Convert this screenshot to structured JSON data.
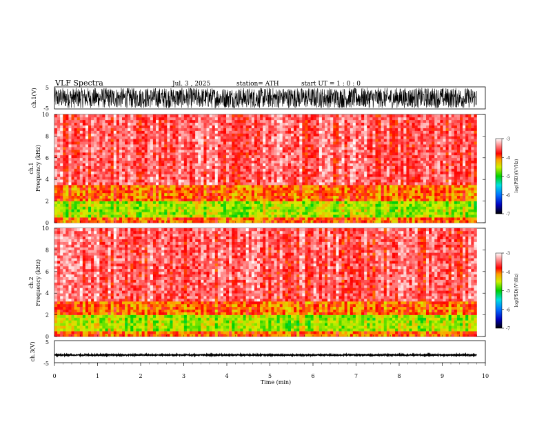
{
  "header": {
    "title": "VLF  Spectra",
    "date": "Jul.  3  , 2025",
    "station": "station= ATH",
    "start_ut": "start  UT  =    1  : 0   : 0"
  },
  "chart_data": [
    {
      "type": "line",
      "id": "ch1-waveform",
      "ylabel": "ch.1(V)",
      "ylim": [
        -5,
        5
      ],
      "yticks": [
        "5",
        "-5"
      ],
      "x": {
        "xlim": [
          0,
          10
        ]
      },
      "description_values": {
        "approx_amplitude_min": -5,
        "approx_amplitude_max": 5
      }
    },
    {
      "type": "heatmap",
      "id": "ch1-spectrogram",
      "ylabel": "ch.1",
      "ylabel2": "Frequency  (kHz)",
      "ylim": [
        0,
        10
      ],
      "yticks": [
        "0",
        "2",
        "4",
        "6",
        "8",
        "10"
      ],
      "xlim": [
        0,
        10
      ],
      "colorbar": {
        "label": "log(PSD)(V²/Hz)",
        "min": -7,
        "max": -3,
        "ticks": [
          "-3",
          "-4",
          "-5",
          "-6",
          "-7"
        ]
      },
      "bands_khz": [
        {
          "from": 0,
          "to": 0.4,
          "level": -4.0
        },
        {
          "from": 0.4,
          "to": 2.0,
          "level": -4.6
        },
        {
          "from": 2.0,
          "to": 3.4,
          "level": -4.0
        },
        {
          "from": 3.4,
          "to": 10,
          "level": -3.5
        }
      ],
      "data_end_min": 9.8
    },
    {
      "type": "heatmap",
      "id": "ch2-spectrogram",
      "ylabel": "ch.2",
      "ylabel2": "Frequency  (kHz)",
      "ylim": [
        0,
        10
      ],
      "yticks": [
        "0",
        "2",
        "4",
        "6",
        "8",
        "10"
      ],
      "xlim": [
        0,
        10
      ],
      "colorbar": {
        "label": "log(PSD)(V²/Hz)",
        "min": -7,
        "max": -3,
        "ticks": [
          "-3",
          "-4",
          "-5",
          "-6",
          "-7"
        ]
      },
      "bands_khz": [
        {
          "from": 0,
          "to": 0.4,
          "level": -4.0
        },
        {
          "from": 0.4,
          "to": 2.0,
          "level": -4.6
        },
        {
          "from": 2.0,
          "to": 3.2,
          "level": -4.0
        },
        {
          "from": 3.2,
          "to": 10,
          "level": -3.5
        }
      ],
      "data_end_min": 9.8
    },
    {
      "type": "line",
      "id": "ch3-waveform",
      "ylabel": "ch.3(V)",
      "ylim": [
        -5,
        5
      ],
      "yticks": [
        "5",
        "-5"
      ],
      "xlim": [
        0,
        10
      ],
      "description_values": {
        "approx_level": -1.5
      }
    }
  ],
  "xaxis": {
    "label": "Time  (min)",
    "ticks": [
      "0",
      "1",
      "2",
      "3",
      "4",
      "5",
      "6",
      "7",
      "8",
      "9",
      "10"
    ]
  },
  "colors": {
    "spectro_low": "#00c000",
    "spectro_mid": "#ffff00",
    "spectro_high": "#ff2020",
    "spectro_max": "#ffffff",
    "trace": "#000000"
  }
}
